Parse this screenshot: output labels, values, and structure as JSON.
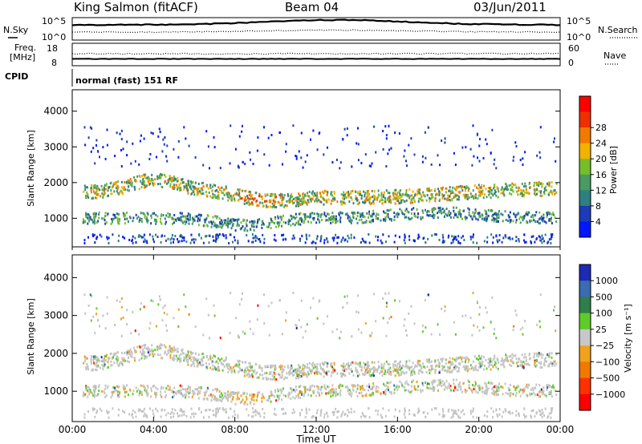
{
  "header": {
    "station": "King Salmon (fitACF)",
    "beam": "Beam 04",
    "date": "03/Jun/2011"
  },
  "summary": {
    "nsky_label": "N.Sky",
    "nsky_ticks": [
      "10^5",
      "10^0"
    ],
    "nsearch_label": "N.Search",
    "freq_label_1": "Freq.",
    "freq_label_2": "[MHz]",
    "freq_ticks": [
      "18",
      "8"
    ],
    "nave_label": "Nave",
    "nave_ticks": [
      "60",
      "0"
    ],
    "cpid_label": "CPID",
    "cpid_value": "normal (fast) 151 RF"
  },
  "colors": {
    "power_scale": [
      "#0018ff",
      "#1d3bb5",
      "#2e7f82",
      "#4a9a63",
      "#76bd2a",
      "#f2b200",
      "#f07a00",
      "#ee3000",
      "#ff0000"
    ],
    "velocity_scale": [
      "#1c2ab4",
      "#3a6cb0",
      "#2f7f4a",
      "#5fcb2a",
      "#c8c8c8",
      "#f0a21e",
      "#f07a00",
      "#ff3000",
      "#ff0000"
    ],
    "ground_scatter": "#c4c4c4"
  },
  "chart_data": [
    {
      "type": "heatmap",
      "name": "power",
      "ylabel": "Slant Range [km]",
      "yticks": [
        "1000",
        "2000",
        "3000",
        "4000"
      ],
      "ylim": [
        200,
        4600
      ],
      "colorbar_label": "Power [dB]",
      "colorbar_ticks": [
        "4",
        "8",
        "12",
        "16",
        "20",
        "24",
        "28"
      ],
      "colorbar_range": [
        0,
        32
      ]
    },
    {
      "type": "heatmap",
      "name": "velocity",
      "ylabel": "Slant Range [km]",
      "yticks": [
        "1000",
        "2000",
        "3000",
        "4000"
      ],
      "ylim": [
        200,
        4600
      ],
      "colorbar_label": "Velocity [m s⁻¹]",
      "colorbar_ticks": [
        "1000",
        "500",
        "100",
        "25",
        "−25",
        "−100",
        "−500",
        "−1000"
      ],
      "xlabel": "Time UT",
      "xticks": [
        "00:00",
        "04:00",
        "08:00",
        "12:00",
        "16:00",
        "20:00",
        "00:00"
      ],
      "xlim_hours": [
        0,
        24
      ]
    }
  ]
}
